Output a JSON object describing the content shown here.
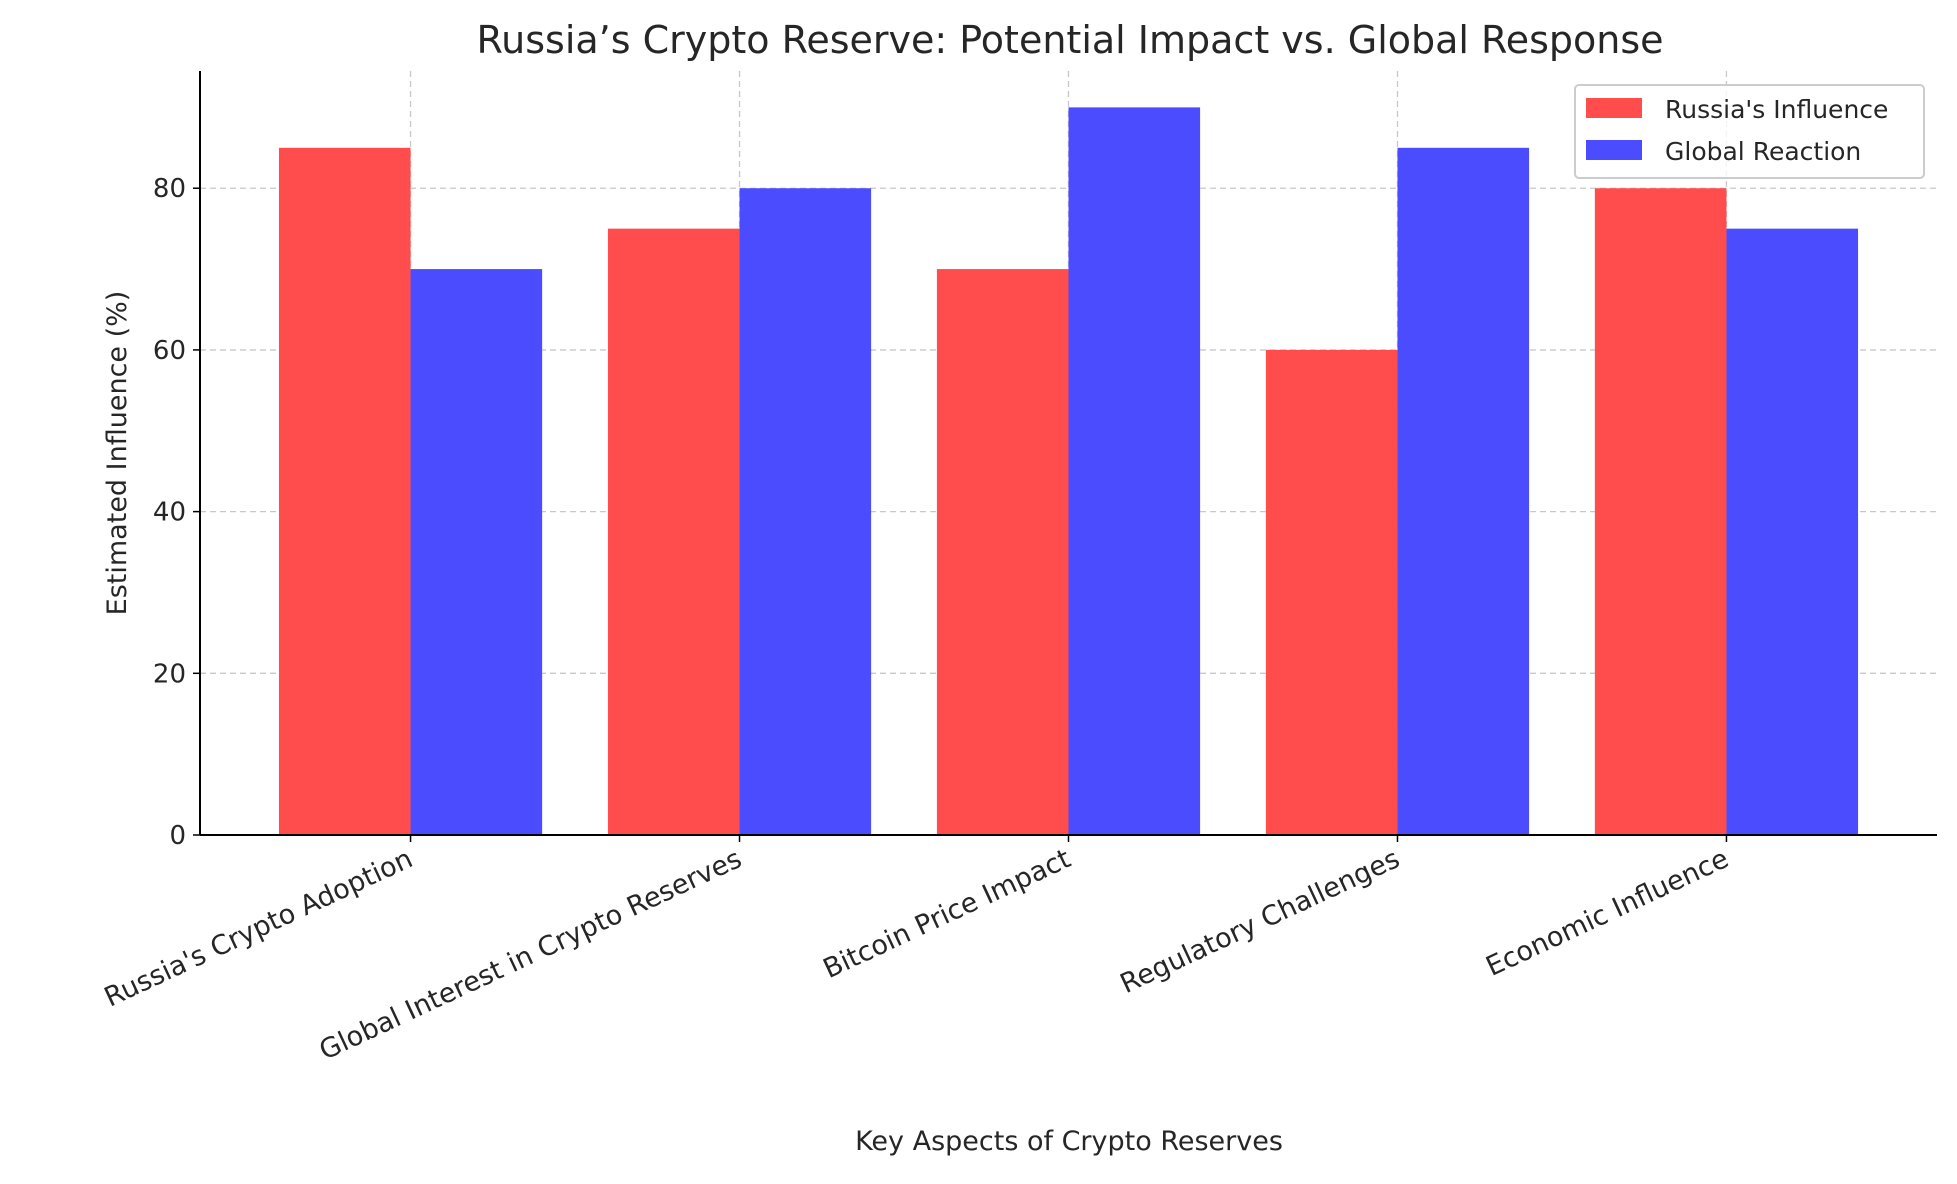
{
  "chart_data": {
    "type": "bar",
    "title": "Russia’s Crypto Reserve: Potential Impact vs. Global Response",
    "xlabel": "Key Aspects of Crypto Reserves",
    "ylabel": "Estimated Influence (%)",
    "categories": [
      "Russia's Crypto Adoption",
      "Global Interest in Crypto Reserves",
      "Bitcoin Price Impact",
      "Regulatory Challenges",
      "Economic Influence"
    ],
    "series": [
      {
        "name": "Russia's Influence",
        "color": "#ff4c4c",
        "values": [
          85,
          75,
          70,
          60,
          80
        ]
      },
      {
        "name": "Global Reaction",
        "color": "#4c4cff",
        "values": [
          70,
          80,
          90,
          85,
          75
        ]
      }
    ],
    "ylim": [
      0,
      94.5
    ],
    "yticks": [
      0,
      20,
      40,
      60,
      80
    ],
    "grid": true,
    "legend": "top-right"
  }
}
